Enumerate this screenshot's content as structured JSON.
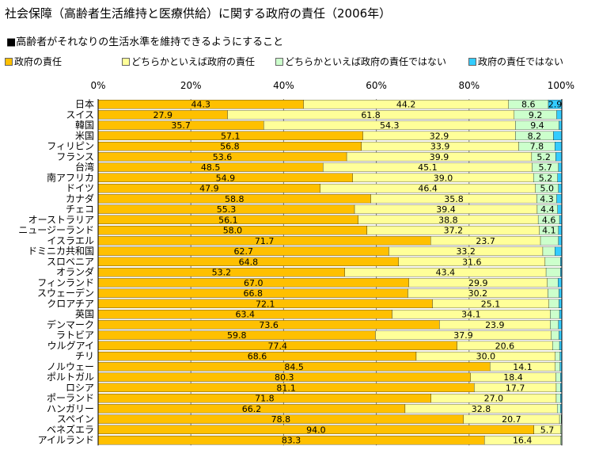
{
  "title": "社会保障（高齢者生活維持と医療供給）に関する政府の責任（2006年）",
  "subtitle": "■高齢者がそれなりの生活水準を維持できるようにすること",
  "colors": {
    "series": [
      "#FFC000",
      "#FFFF99",
      "#CCFFCC",
      "#33CCFF"
    ],
    "grid": "#808080"
  },
  "chart_data": {
    "type": "bar",
    "orientation": "horizontal",
    "stacked": true,
    "percent": true,
    "xlim": [
      0,
      100
    ],
    "x_ticks": [
      "0%",
      "20%",
      "40%",
      "60%",
      "80%",
      "100%"
    ],
    "categories": [
      "日本",
      "スイス",
      "韓国",
      "米国",
      "フィリピン",
      "フランス",
      "台湾",
      "南アフリカ",
      "ドイツ",
      "カナダ",
      "チェコ",
      "オーストラリア",
      "ニュージーランド",
      "イスラエル",
      "ドミニカ共和国",
      "スロベニア",
      "オランダ",
      "フィンランド",
      "スウェーデン",
      "クロアチア",
      "英国",
      "デンマーク",
      "ラトビア",
      "ウルグアイ",
      "チリ",
      "ノルウェー",
      "ポルトガル",
      "ロシア",
      "ポーランド",
      "ハンガリー",
      "スペイン",
      "ベネズエラ",
      "アイルランド"
    ],
    "series": [
      {
        "name": "政府の責任",
        "values": [
          44.3,
          27.9,
          35.7,
          57.1,
          56.8,
          53.6,
          48.5,
          54.9,
          47.9,
          58.8,
          55.3,
          56.1,
          58.0,
          71.7,
          62.7,
          64.8,
          53.2,
          67.0,
          66.8,
          72.1,
          63.4,
          73.6,
          59.8,
          77.4,
          68.6,
          84.5,
          80.3,
          81.1,
          71.8,
          66.2,
          78.8,
          94.0,
          83.3
        ],
        "labels": [
          "44.3",
          "27.9",
          "35.7",
          "57.1",
          "56.8",
          "53.6",
          "48.5",
          "54.9",
          "47.9",
          "58.8",
          "55.3",
          "56.1",
          "58.0",
          "71.7",
          "62.7",
          "64.8",
          "53.2",
          "67.0",
          "66.8",
          "72.1",
          "63.4",
          "73.6",
          "59.8",
          "77.4",
          "68.6",
          "84.5",
          "80.3",
          "81.1",
          "71.8",
          "66.2",
          "78.8",
          "94.0",
          "83.3"
        ]
      },
      {
        "name": "どちらかといえば政府の責任",
        "values": [
          44.2,
          61.8,
          54.3,
          32.9,
          33.9,
          39.9,
          45.1,
          39.0,
          46.4,
          35.8,
          39.4,
          38.8,
          37.2,
          23.7,
          33.2,
          31.6,
          43.4,
          29.9,
          30.2,
          25.1,
          34.1,
          23.9,
          37.9,
          20.6,
          30.0,
          14.1,
          18.4,
          17.7,
          27.0,
          32.8,
          20.7,
          5.7,
          16.4
        ],
        "labels": [
          "44.2",
          "61.8",
          "54.3",
          "32.9",
          "33.9",
          "39.9",
          "45.1",
          "39.0",
          "46.4",
          "35.8",
          "39.4",
          "38.8",
          "37.2",
          "23.7",
          "33.2",
          "31.6",
          "43.4",
          "29.9",
          "30.2",
          "25.1",
          "34.1",
          "23.9",
          "37.9",
          "20.6",
          "30.0",
          "14.1",
          "18.4",
          "17.7",
          "27.0",
          "32.8",
          "20.7",
          "5.7",
          "16.4"
        ]
      },
      {
        "name": "どちらかといえば政府の責任ではない",
        "values": [
          8.6,
          9.2,
          9.4,
          8.2,
          7.8,
          5.2,
          5.7,
          5.2,
          5.0,
          4.3,
          4.4,
          4.6,
          4.1,
          3.9,
          2.6,
          3.3,
          3.1,
          2.3,
          2.4,
          2.2,
          2.0,
          1.8,
          1.7,
          1.5,
          1.0,
          1.0,
          1.0,
          0.9,
          0.9,
          0.7,
          0.4,
          0.3,
          0.3
        ],
        "labels": [
          "8.6",
          "9.2",
          "9.4",
          "8.2",
          "7.8",
          "5.2",
          "5.7",
          "5.2",
          "5.0",
          "4.3",
          "4.4",
          "4.6",
          "4.1",
          "",
          "",
          "",
          "",
          "",
          "",
          "",
          "",
          "",
          "",
          "",
          "",
          "",
          "",
          "",
          "",
          "",
          "",
          "",
          ""
        ]
      },
      {
        "name": "政府の責任ではない",
        "values": [
          2.9,
          1.1,
          0.6,
          1.8,
          1.5,
          1.3,
          0.7,
          0.9,
          0.7,
          1.1,
          0.9,
          0.5,
          0.7,
          0.7,
          1.5,
          0.3,
          0.3,
          0.8,
          0.6,
          0.6,
          0.5,
          0.7,
          0.6,
          0.5,
          0.4,
          0.4,
          0.3,
          0.3,
          0.3,
          0.3,
          0.1,
          0.0,
          0.0
        ],
        "labels": [
          "2.9",
          "",
          "",
          "",
          "",
          "",
          "",
          "",
          "",
          "",
          "",
          "",
          "",
          "",
          "",
          "",
          "",
          "",
          "",
          "",
          "",
          "",
          "",
          "",
          "",
          "",
          "",
          "",
          "",
          "",
          "",
          "",
          ""
        ]
      }
    ]
  }
}
